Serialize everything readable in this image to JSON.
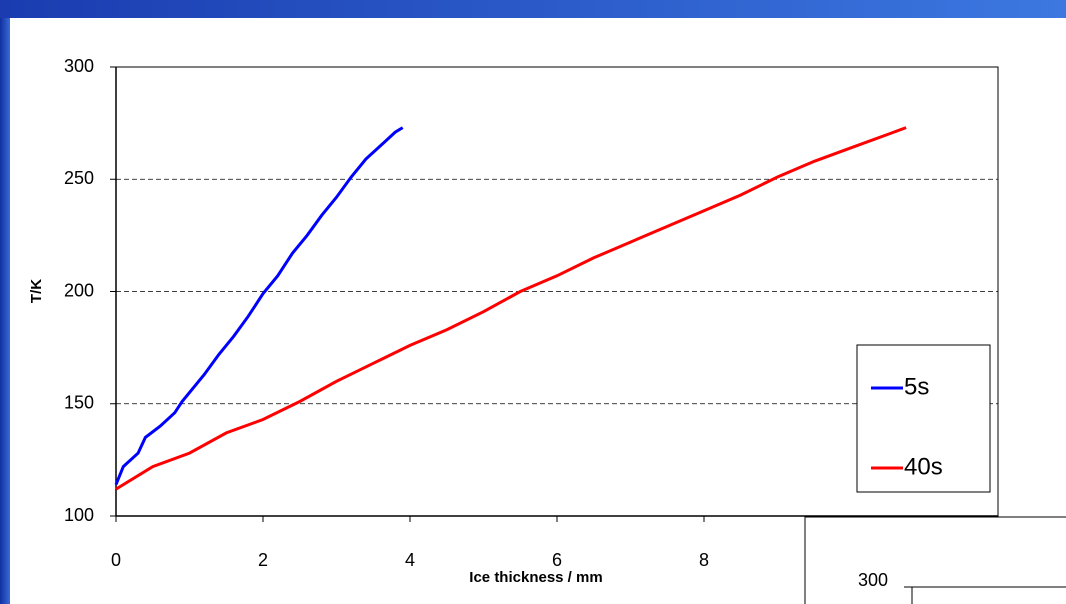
{
  "chart_data": [
    {
      "type": "line",
      "x_label": "Ice thickness / mm",
      "y_label": "T/K",
      "xlim": [
        0,
        12
      ],
      "xticks": [
        0,
        2,
        4,
        6,
        8
      ],
      "ylim": [
        100,
        300
      ],
      "yticks": [
        100,
        150,
        200,
        250,
        300
      ],
      "grid": true,
      "legend": "right",
      "series": [
        {
          "name": "5s",
          "color": "#0000ff",
          "x": [
            0,
            0.1,
            0.3,
            0.4,
            0.6,
            0.8,
            0.9,
            1.2,
            1.4,
            1.6,
            1.8,
            2.0,
            2.2,
            2.4,
            2.6,
            2.8,
            3.0,
            3.2,
            3.4,
            3.6,
            3.8,
            3.9
          ],
          "values": [
            114,
            122,
            128,
            135,
            140,
            146,
            151,
            163,
            172,
            180,
            189,
            199,
            207,
            217,
            225,
            234,
            242,
            251,
            259,
            265,
            271,
            273
          ]
        },
        {
          "name": "40s",
          "color": "#ff0000",
          "x": [
            0,
            0.5,
            1,
            1.5,
            2,
            2.5,
            3,
            3.5,
            4,
            4.5,
            5,
            5.5,
            6,
            6.5,
            7,
            7.5,
            8,
            8.5,
            9,
            9.5,
            10,
            10.5,
            10.75
          ],
          "values": [
            112,
            122,
            128,
            137,
            143,
            151,
            160,
            168,
            176,
            183,
            191,
            200,
            207,
            215,
            222,
            229,
            236,
            243,
            251,
            258,
            264,
            270,
            273
          ]
        }
      ]
    },
    {
      "type": "line",
      "ylim": [
        100,
        300
      ],
      "yticks": [
        300
      ]
    }
  ]
}
